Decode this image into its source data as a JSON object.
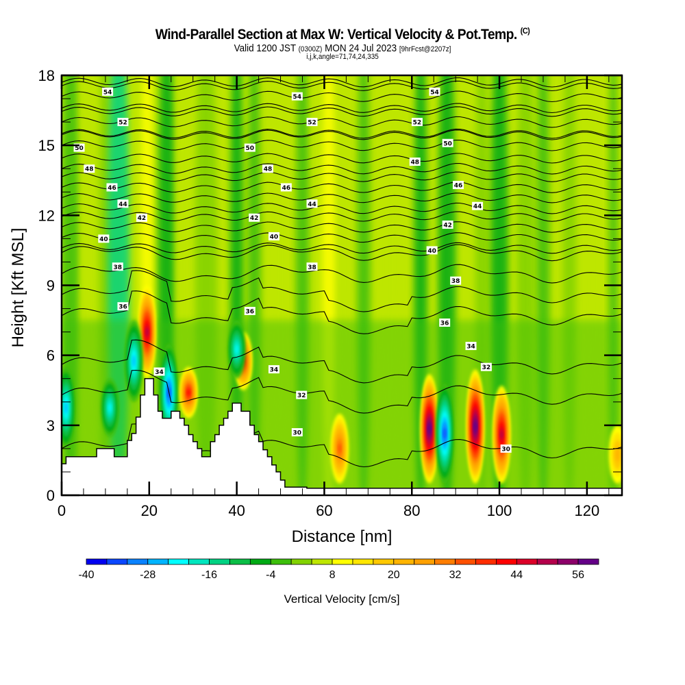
{
  "header": {
    "title": "Wind-Parallel Section at Max W: Vertical Velocity & Pot.Temp.",
    "copyright": "(C)",
    "valid_prefix": "Valid 1200 JST",
    "valid_utc": "(0300Z)",
    "valid_date": "MON 24 Jul 2023",
    "forecast": "[9hrFcst@2207z]",
    "section_params": "i,j,k,angle=71,74,24,335"
  },
  "chart_data": {
    "type": "heatmap",
    "title": "Wind-Parallel Section at Max W: Vertical Velocity & Pot.Temp.",
    "xlabel": "Distance [nm]",
    "ylabel": "Height [Kft MSL]",
    "xlim": [
      0,
      128
    ],
    "ylim": [
      0,
      18
    ],
    "x_ticks": [
      0,
      20,
      40,
      60,
      80,
      100,
      120
    ],
    "x_tick_labels": [
      "0",
      "20",
      "40",
      "60",
      "80",
      "100",
      "120"
    ],
    "y_ticks": [
      0,
      3,
      6,
      9,
      12,
      15,
      18
    ],
    "y_tick_labels": [
      "0",
      "3",
      "6",
      "9",
      "12",
      "15",
      "18"
    ],
    "x_minor_step": 5,
    "y_minor_step": 1,
    "colorbar": {
      "title": "Vertical Velocity [cm/s]",
      "levels": [
        -40,
        -36,
        -32,
        -28,
        -24,
        -20,
        -16,
        -12,
        -8,
        -4,
        0,
        4,
        8,
        12,
        16,
        20,
        24,
        28,
        32,
        36,
        40,
        44,
        48,
        52,
        56,
        60
      ],
      "tick_labels": [
        "-40",
        "-28",
        "-16",
        "-4",
        "8",
        "20",
        "32",
        "44",
        "56"
      ],
      "colors": [
        "#0000f0",
        "#0a46ff",
        "#0a82ff",
        "#00b4ff",
        "#00ffff",
        "#00e6be",
        "#00d282",
        "#0abe46",
        "#00aa14",
        "#3cbe0a",
        "#82d200",
        "#bee600",
        "#ffff00",
        "#ffe600",
        "#ffc800",
        "#ffb400",
        "#ffa000",
        "#ff7d00",
        "#ff5000",
        "#ff2d00",
        "#ff0000",
        "#dc0028",
        "#b4004b",
        "#8c0069",
        "#640087"
      ],
      "position": "bottom"
    },
    "background_w_cm_s": 4,
    "w_features": [
      {
        "name": "updraft",
        "x": 19.5,
        "z_bottom": 5.0,
        "z_top": 9.0,
        "peak_w": 44
      },
      {
        "name": "downdraft",
        "x": 16.5,
        "z_bottom": 4.0,
        "z_top": 7.5,
        "peak_w": -28
      },
      {
        "name": "downdraft",
        "x": 24.5,
        "z_bottom": 2.3,
        "z_top": 6.5,
        "peak_w": -36
      },
      {
        "name": "updraft",
        "x": 29.0,
        "z_bottom": 3.3,
        "z_top": 5.5,
        "peak_w": 36
      },
      {
        "name": "updraft",
        "x": 41.5,
        "z_bottom": 4.5,
        "z_top": 7.0,
        "peak_w": 36
      },
      {
        "name": "downdraft",
        "x": 40.0,
        "z_bottom": 5.0,
        "z_top": 7.5,
        "peak_w": -24
      },
      {
        "name": "downdraft",
        "x": 1.0,
        "z_bottom": 2.0,
        "z_top": 5.5,
        "peak_w": -28
      },
      {
        "name": "downdraft",
        "x": 11.0,
        "z_bottom": 2.5,
        "z_top": 5.0,
        "peak_w": -24
      },
      {
        "name": "updraft",
        "x": 63.5,
        "z_bottom": 0.5,
        "z_top": 3.5,
        "peak_w": 28
      },
      {
        "name": "updraft",
        "x": 84.0,
        "z_bottom": 0.5,
        "z_top": 5.2,
        "peak_w": 56
      },
      {
        "name": "downdraft",
        "x": 87.5,
        "z_bottom": 0.5,
        "z_top": 4.8,
        "peak_w": -36
      },
      {
        "name": "updraft",
        "x": 94.5,
        "z_bottom": 0.5,
        "z_top": 5.4,
        "peak_w": 56
      },
      {
        "name": "updraft",
        "x": 100.5,
        "z_bottom": 0.5,
        "z_top": 4.7,
        "peak_w": 44
      },
      {
        "name": "updraft",
        "x": 127.0,
        "z_bottom": 0.5,
        "z_top": 3.0,
        "peak_w": 16
      }
    ],
    "terrain_kft": {
      "x": [
        0,
        1,
        6,
        7,
        8,
        12,
        13,
        15,
        16,
        17,
        18,
        19,
        20.5,
        21,
        22,
        23,
        24,
        25,
        26,
        27,
        28,
        29,
        30,
        31,
        32,
        33,
        34,
        35,
        36,
        37,
        38,
        39,
        40,
        41,
        42,
        43,
        44,
        45,
        46,
        47,
        48,
        49,
        50,
        51,
        55,
        56,
        57,
        128
      ],
      "z": [
        1.35,
        1.65,
        1.65,
        1.65,
        2.0,
        1.65,
        1.65,
        2.35,
        2.65,
        3.35,
        4.3,
        5.0,
        5.0,
        4.3,
        3.6,
        3.3,
        3.3,
        3.6,
        3.6,
        3.3,
        3.0,
        2.6,
        2.3,
        2.0,
        1.65,
        1.65,
        2.3,
        2.6,
        3.0,
        3.3,
        3.6,
        3.95,
        3.95,
        3.6,
        3.6,
        3.0,
        2.6,
        2.3,
        1.95,
        1.65,
        1.3,
        1.0,
        0.65,
        0.35,
        0.35,
        0.3,
        0.3,
        0.3
      ]
    },
    "theta_contours_K_levels": [
      30,
      32,
      34,
      36,
      38,
      40,
      42,
      44,
      46,
      48,
      50,
      52,
      54
    ],
    "theta_contour_labels": [
      {
        "text": "54",
        "x": 10.5,
        "z": 17.3
      },
      {
        "text": "52",
        "x": 14,
        "z": 16.0
      },
      {
        "text": "50",
        "x": 4,
        "z": 14.9
      },
      {
        "text": "48",
        "x": 6.3,
        "z": 14.0
      },
      {
        "text": "46",
        "x": 11.5,
        "z": 13.2
      },
      {
        "text": "44",
        "x": 14,
        "z": 12.5
      },
      {
        "text": "42",
        "x": 18.3,
        "z": 11.9
      },
      {
        "text": "40",
        "x": 9.6,
        "z": 11.0
      },
      {
        "text": "38",
        "x": 12.8,
        "z": 9.8
      },
      {
        "text": "36",
        "x": 14,
        "z": 8.1
      },
      {
        "text": "54",
        "x": 53.8,
        "z": 17.1
      },
      {
        "text": "52",
        "x": 57.2,
        "z": 16.0
      },
      {
        "text": "50",
        "x": 43,
        "z": 14.9
      },
      {
        "text": "48",
        "x": 47.1,
        "z": 14.0
      },
      {
        "text": "46",
        "x": 51.3,
        "z": 13.2
      },
      {
        "text": "44",
        "x": 57.2,
        "z": 12.5
      },
      {
        "text": "42",
        "x": 44,
        "z": 11.9
      },
      {
        "text": "40",
        "x": 48.5,
        "z": 11.1
      },
      {
        "text": "38",
        "x": 57.2,
        "z": 9.8
      },
      {
        "text": "36",
        "x": 43,
        "z": 7.9
      },
      {
        "text": "34",
        "x": 48.5,
        "z": 5.4
      },
      {
        "text": "34",
        "x": 22.3,
        "z": 5.3
      },
      {
        "text": "32",
        "x": 54.8,
        "z": 4.3
      },
      {
        "text": "30",
        "x": 53.8,
        "z": 2.7
      },
      {
        "text": "54",
        "x": 85.2,
        "z": 17.3
      },
      {
        "text": "52",
        "x": 81.2,
        "z": 16.0
      },
      {
        "text": "50",
        "x": 88.2,
        "z": 15.1
      },
      {
        "text": "48",
        "x": 80.7,
        "z": 14.3
      },
      {
        "text": "46",
        "x": 90.6,
        "z": 13.3
      },
      {
        "text": "44",
        "x": 95,
        "z": 12.4
      },
      {
        "text": "42",
        "x": 88.2,
        "z": 11.6
      },
      {
        "text": "40",
        "x": 84.6,
        "z": 10.5
      },
      {
        "text": "38",
        "x": 90,
        "z": 9.2
      },
      {
        "text": "36",
        "x": 87.5,
        "z": 7.4
      },
      {
        "text": "34",
        "x": 93.5,
        "z": 6.4
      },
      {
        "text": "32",
        "x": 97,
        "z": 5.5
      },
      {
        "text": "30",
        "x": 101.5,
        "z": 2.0
      }
    ]
  }
}
